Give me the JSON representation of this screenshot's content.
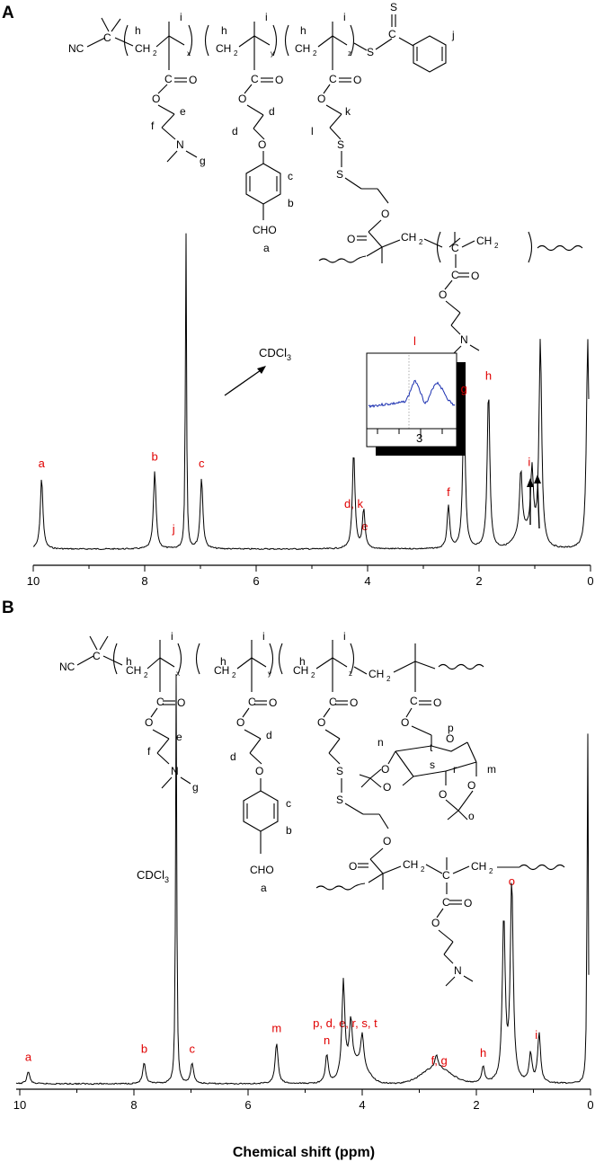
{
  "chart_data": [
    {
      "panel": "A",
      "type": "line",
      "xlabel": "",
      "xlim": [
        11,
        0
      ],
      "x_reversed": true,
      "ticks": [
        10,
        8,
        6,
        4,
        2,
        0
      ],
      "solvent": {
        "label": "CDCl",
        "subscript": "3",
        "x": 7.26
      },
      "peaks": [
        {
          "x": 9.85,
          "height": 0.22
        },
        {
          "x": 7.82,
          "height": 0.24
        },
        {
          "x": 7.26,
          "height": 1.0
        },
        {
          "x": 6.98,
          "height": 0.22
        },
        {
          "x": 4.25,
          "height": 0.3
        },
        {
          "x": 4.07,
          "height": 0.12
        },
        {
          "x": 2.55,
          "height": 0.13
        },
        {
          "x": 2.27,
          "height": 0.45
        },
        {
          "x": 1.83,
          "height": 0.49
        },
        {
          "x": 1.25,
          "height": 0.2
        },
        {
          "x": 1.05,
          "height": 0.2
        },
        {
          "x": 0.9,
          "height": 0.63
        },
        {
          "x": 0.05,
          "height": 0.65
        }
      ],
      "labels": [
        {
          "text": "a",
          "x": 9.85
        },
        {
          "text": "b",
          "x": 7.82
        },
        {
          "text": "j",
          "x": 7.48
        },
        {
          "text": "c",
          "x": 6.98
        },
        {
          "text": "d, k",
          "x": 4.25
        },
        {
          "text": "e",
          "x": 4.05
        },
        {
          "text": "f",
          "x": 2.55
        },
        {
          "text": "g",
          "x": 2.27
        },
        {
          "text": "h",
          "x": 1.83
        },
        {
          "text": "i",
          "x": 1.1
        }
      ],
      "inset": {
        "peak_label": "l",
        "tick": "3"
      }
    },
    {
      "panel": "B",
      "type": "line",
      "xlabel": "Chemical shift (ppm)",
      "xlim": [
        11,
        0
      ],
      "x_reversed": true,
      "ticks": [
        10,
        8,
        6,
        4,
        2,
        0
      ],
      "solvent": {
        "label": "CDCl",
        "subscript": "3",
        "x": 7.26
      },
      "peaks": [
        {
          "x": 9.85,
          "height": 0.03
        },
        {
          "x": 7.82,
          "height": 0.05
        },
        {
          "x": 7.26,
          "height": 1.0
        },
        {
          "x": 6.98,
          "height": 0.05
        },
        {
          "x": 5.5,
          "height": 0.1
        },
        {
          "x": 4.62,
          "height": 0.07
        },
        {
          "x": 4.33,
          "height": 0.23
        },
        {
          "x": 4.2,
          "height": 0.11
        },
        {
          "x": 4.0,
          "height": 0.08
        },
        {
          "x": 2.7,
          "height": 0.03
        },
        {
          "x": 1.88,
          "height": 0.04
        },
        {
          "x": 1.52,
          "height": 0.4
        },
        {
          "x": 1.38,
          "height": 0.49
        },
        {
          "x": 1.05,
          "height": 0.07
        },
        {
          "x": 0.9,
          "height": 0.12
        },
        {
          "x": 0.05,
          "height": 0.9
        }
      ],
      "labels": [
        {
          "text": "a",
          "x": 9.85
        },
        {
          "text": "b",
          "x": 7.82
        },
        {
          "text": "c",
          "x": 6.98
        },
        {
          "text": "m",
          "x": 5.5
        },
        {
          "text": "n",
          "x": 4.62
        },
        {
          "text": "p, d, e, r, s, t",
          "x": 4.3
        },
        {
          "text": "f, g",
          "x": 2.65
        },
        {
          "text": "h",
          "x": 1.88
        },
        {
          "text": "o",
          "x": 1.38
        },
        {
          "text": "i",
          "x": 0.95
        }
      ]
    }
  ],
  "panels": {
    "a": "A",
    "b": "B"
  },
  "structure": {
    "nc": "NC",
    "ch2": "CH",
    "sub2": "2",
    "sub_x": "x",
    "sub_y": "y",
    "sub_z": "z",
    "co": "C",
    "o": "O",
    "n": "N",
    "s": "S",
    "cho": "CHO",
    "letters_a": {
      "h": "h",
      "i": "i",
      "j": "j",
      "e": "e",
      "f": "f",
      "g": "g",
      "d": "d",
      "c": "c",
      "b": "b",
      "a": "a",
      "k": "k",
      "l": "l"
    },
    "letters_b": {
      "h": "h",
      "i": "i",
      "e": "e",
      "f": "f",
      "g": "g",
      "d": "d",
      "c": "c",
      "b": "b",
      "a": "a",
      "n": "n",
      "t": "t",
      "p": "p",
      "s": "s",
      "r": "r",
      "m": "m",
      "o": "o"
    }
  },
  "colors": {
    "label": "#e00000",
    "trace": "#000000",
    "inset_trace": "#1a2fb0"
  }
}
